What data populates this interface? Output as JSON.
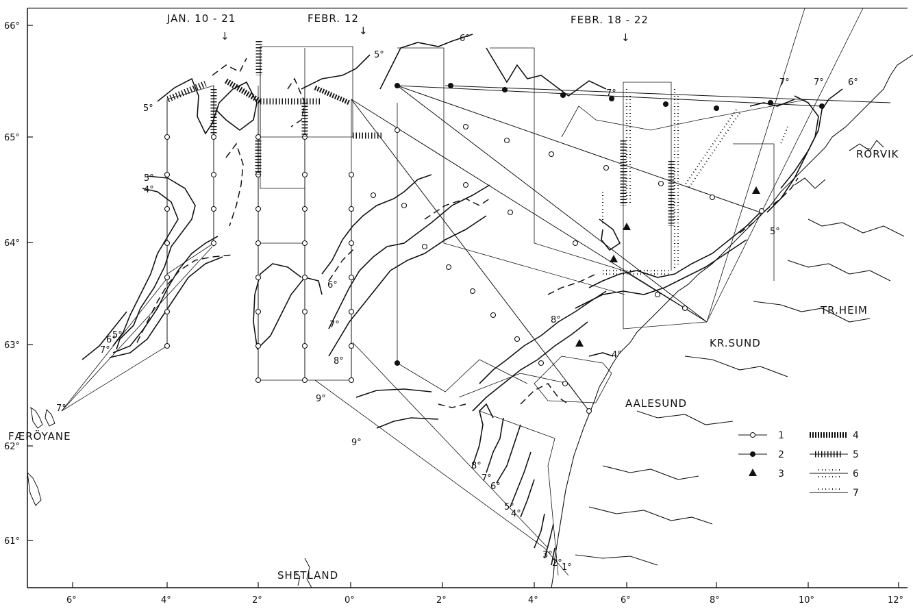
{
  "period_labels": [
    "JAN. 10 - 21",
    "FEBR. 12",
    "FEBR. 18 - 22"
  ],
  "period_arrow": "↓",
  "place_names": [
    "RÖRVIK",
    "TR.HEIM",
    "KR.SUND",
    "AALESUND",
    "FÆRÖYANE",
    "SHETLAND"
  ],
  "latitude_labels": [
    "66°",
    "65°",
    "64°",
    "63°",
    "62°",
    "61°"
  ],
  "longitude_labels": [
    "6°",
    "4°",
    "2°",
    "0°",
    "2°",
    "4°",
    "6°",
    "8°",
    "10°",
    "12°"
  ],
  "isotherm_labels": [
    "5°",
    "6°",
    "7°",
    "7°",
    "7°",
    "6°",
    "5°",
    "5°",
    "4°",
    "5°",
    "6°",
    "7°",
    "7°",
    "6°",
    "7°",
    "8°",
    "8°",
    "4°",
    "9°",
    "9°",
    "8°",
    "7°",
    "6°",
    "5°",
    "4°",
    "3°",
    "2°",
    "1°",
    "5°"
  ],
  "legend": [
    {
      "key": "1",
      "symbol": "open-circle-station-line"
    },
    {
      "key": "2",
      "symbol": "half-filled-circle-station-line"
    },
    {
      "key": "3",
      "symbol": "filled-triangle"
    },
    {
      "key": "4",
      "symbol": "cross-hatched-track"
    },
    {
      "key": "5",
      "symbol": "dense-tick-track"
    },
    {
      "key": "6",
      "symbol": "double-dotted-track"
    },
    {
      "key": "7",
      "symbol": "single-dotted-track"
    }
  ],
  "colors": {
    "ink": "#111111",
    "paper": "#ffffff"
  }
}
